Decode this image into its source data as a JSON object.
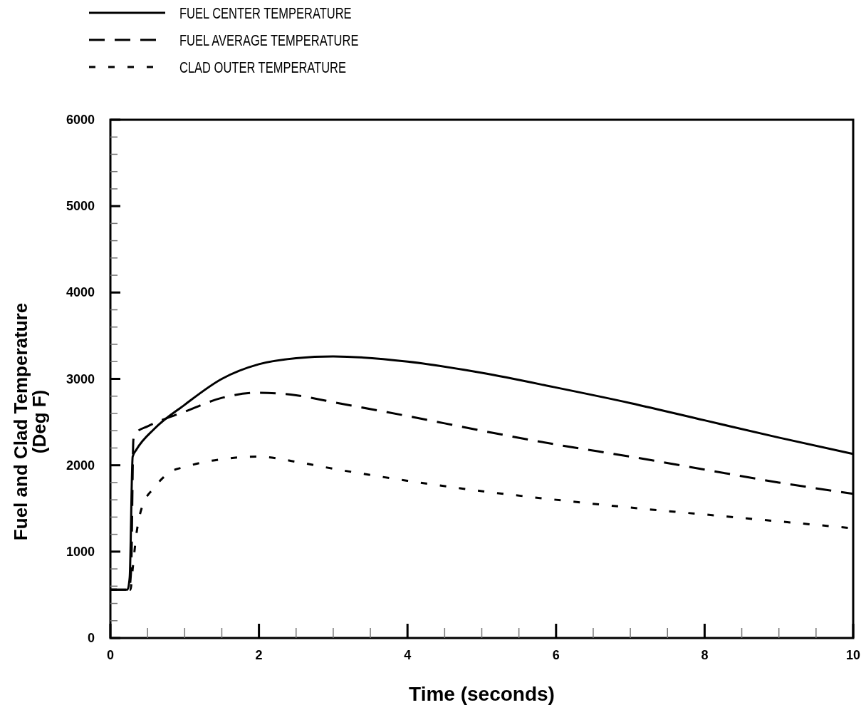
{
  "chart_data": {
    "type": "line",
    "xlabel": "Time (seconds)",
    "ylabel": "Fuel and Clad Temperature\n(Deg F)",
    "xlim": [
      0,
      10
    ],
    "ylim": [
      0,
      6000
    ],
    "xticks": [
      0,
      {
        "value": 0.5,
        "label": null
      },
      {
        "value": 1,
        "label": null
      },
      {
        "value": 1.5,
        "label": null
      },
      2,
      {
        "value": 2.5,
        "label": null
      },
      {
        "value": 3,
        "label": null
      },
      {
        "value": 3.5,
        "label": null
      },
      4,
      {
        "value": 4.5,
        "label": null
      },
      {
        "value": 5,
        "label": null
      },
      {
        "value": 5.5,
        "label": null
      },
      6,
      {
        "value": 6.5,
        "label": null
      },
      {
        "value": 7,
        "label": null
      },
      {
        "value": 7.5,
        "label": null
      },
      8,
      {
        "value": 8.5,
        "label": null
      },
      {
        "value": 9,
        "label": null
      },
      {
        "value": 9.5,
        "label": null
      },
      10
    ],
    "yticks": [
      0,
      {
        "value": 200,
        "label": null
      },
      {
        "value": 400,
        "label": null
      },
      {
        "value": 600,
        "label": null
      },
      {
        "value": 800,
        "label": null
      },
      1000,
      {
        "value": 1200,
        "label": null
      },
      {
        "value": 1400,
        "label": null
      },
      {
        "value": 1600,
        "label": null
      },
      {
        "value": 1800,
        "label": null
      },
      2000,
      {
        "value": 2200,
        "label": null
      },
      {
        "value": 2400,
        "label": null
      },
      {
        "value": 2600,
        "label": null
      },
      {
        "value": 2800,
        "label": null
      },
      3000,
      {
        "value": 3200,
        "label": null
      },
      {
        "value": 3400,
        "label": null
      },
      {
        "value": 3600,
        "label": null
      },
      {
        "value": 3800,
        "label": null
      },
      4000,
      {
        "value": 4200,
        "label": null
      },
      {
        "value": 4400,
        "label": null
      },
      {
        "value": 4600,
        "label": null
      },
      {
        "value": 4800,
        "label": null
      },
      5000,
      {
        "value": 5200,
        "label": null
      },
      {
        "value": 5400,
        "label": null
      },
      {
        "value": 5600,
        "label": null
      },
      {
        "value": 5800,
        "label": null
      },
      6000
    ],
    "legend": "top left",
    "grid": false,
    "series": [
      {
        "name": "FUEL CENTER TEMPERATURE",
        "color": "#000000",
        "line_style": "solid",
        "x": [
          0,
          0.23,
          0.26,
          0.3,
          0.35,
          0.59,
          1,
          1.5,
          2,
          2.5,
          3,
          4,
          5,
          6,
          7,
          8,
          9,
          10
        ],
        "values": [
          560,
          560,
          700,
          2100,
          2180,
          2420,
          2700,
          3000,
          3170,
          3240,
          3260,
          3200,
          3070,
          2900,
          2720,
          2520,
          2320,
          2130
        ]
      },
      {
        "name": "FUEL AVERAGE TEMPERATURE",
        "color": "#000000",
        "line_style": "dashed",
        "x": [
          0,
          0.25,
          0.28,
          0.31,
          0.35,
          0.5,
          1,
          1.5,
          2,
          2.5,
          3,
          4,
          5,
          6,
          7,
          8,
          9,
          10
        ],
        "values": [
          560,
          560,
          800,
          2300,
          2380,
          2450,
          2620,
          2780,
          2840,
          2810,
          2730,
          2570,
          2400,
          2240,
          2100,
          1950,
          1800,
          1670
        ]
      },
      {
        "name": "CLAD OUTER TEMPERATURE",
        "color": "#000000",
        "line_style": "dotted",
        "x": [
          0,
          0.27,
          0.3,
          0.35,
          0.42,
          0.6,
          0.8,
          1,
          1.5,
          2,
          2.5,
          3,
          4,
          5,
          6,
          7,
          8,
          9,
          10
        ],
        "values": [
          560,
          560,
          800,
          1200,
          1500,
          1750,
          1920,
          1980,
          2070,
          2100,
          2040,
          1960,
          1820,
          1700,
          1600,
          1510,
          1430,
          1350,
          1270
        ]
      }
    ]
  }
}
